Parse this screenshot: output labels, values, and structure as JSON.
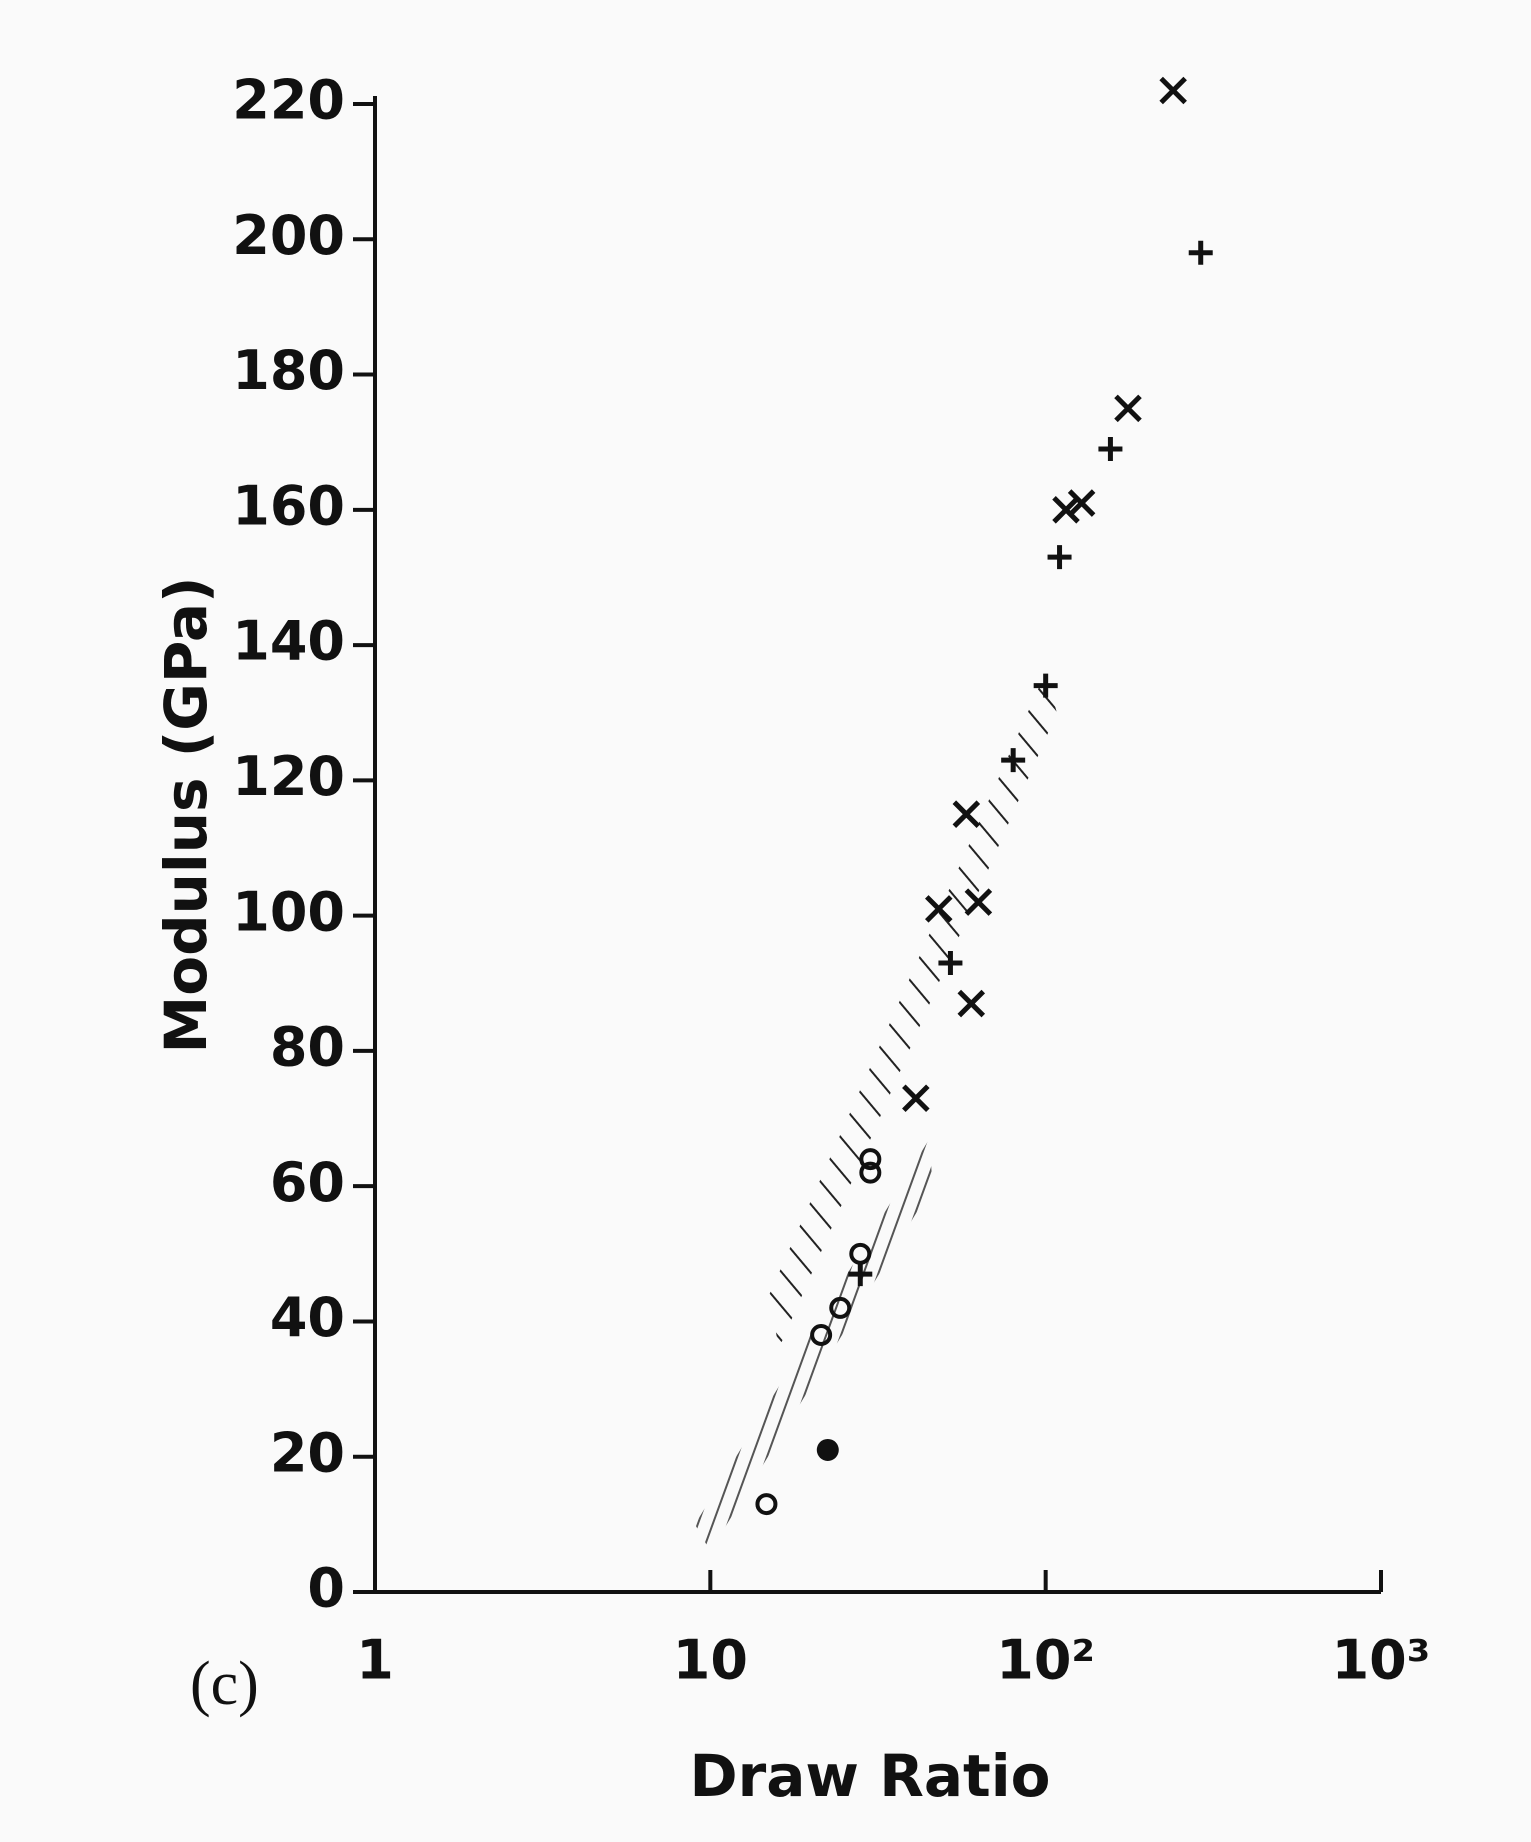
{
  "chart_data": {
    "type": "scatter",
    "label": "(c)",
    "x_label": "Draw Ratio",
    "y_label": "Modulus (GPa)",
    "xscale": "log",
    "xlim": [
      1,
      1000
    ],
    "ylim": [
      0,
      220
    ],
    "xticks": [
      1,
      10,
      {
        "value": 100,
        "label": "10²"
      },
      {
        "value": 1000,
        "label": "10³"
      }
    ],
    "yticks": [
      0,
      20,
      40,
      60,
      80,
      100,
      120,
      140,
      160,
      180,
      200,
      220
    ],
    "series": [
      {
        "marker": "x",
        "color": "#111111",
        "x": [
          240,
          176,
          128,
          115,
          58,
          63,
          48,
          60,
          41
        ],
        "values": [
          222,
          175,
          161,
          160,
          115,
          102,
          101,
          87,
          73
        ]
      },
      {
        "marker": "+",
        "color": "#111111",
        "x": [
          290,
          156,
          110,
          100,
          80,
          52,
          28
        ],
        "values": [
          198,
          169,
          153,
          134,
          123,
          93,
          47
        ]
      },
      {
        "marker": "o",
        "color": "#111111",
        "x": [
          30,
          30,
          28,
          24.4,
          21.4,
          14.7
        ],
        "values": [
          64,
          62,
          50,
          42,
          38,
          13
        ]
      },
      {
        "marker": "dot",
        "color": "#111111",
        "x": [
          22.4
        ],
        "values": [
          21
        ]
      }
    ],
    "bands": [
      {
        "hatch": "diagonal",
        "x": [
          15,
          100,
          108,
          16
        ],
        "values": [
          44,
          136,
          130,
          36
        ]
      },
      {
        "hatch": "vertical",
        "x": [
          9,
          45,
          46,
          10
        ],
        "values": [
          10,
          67,
          60,
          6
        ]
      }
    ]
  }
}
